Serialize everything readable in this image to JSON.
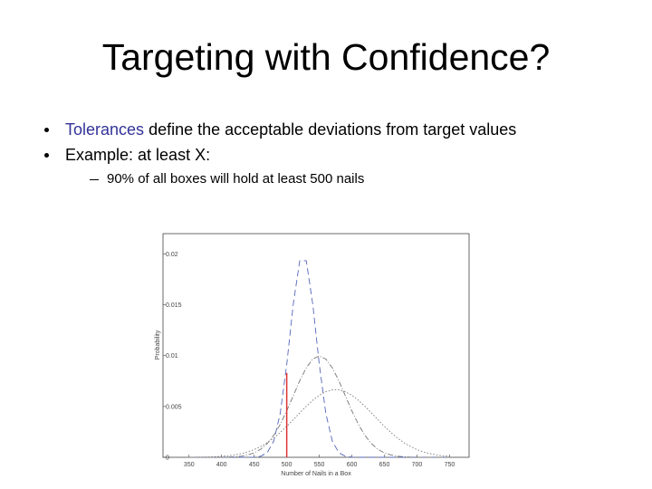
{
  "header": {
    "title": "Targeting with Confidence?"
  },
  "bullets": [
    {
      "highlight": "Tolerances",
      "text": "define the acceptable deviations from target values"
    },
    {
      "text": "Example: at least X:"
    }
  ],
  "sub_bullets": [
    "90% of all boxes will hold at least 500 nails"
  ],
  "chart_data": {
    "type": "line",
    "x_label": "Number of Nails in a Box",
    "y_label": "Probability",
    "x": [
      350,
      360,
      370,
      380,
      390,
      400,
      410,
      420,
      430,
      440,
      450,
      460,
      470,
      480,
      490,
      500,
      510,
      520,
      530,
      540,
      550,
      560,
      570,
      580,
      590,
      600,
      610,
      620,
      630,
      640,
      650,
      660,
      670,
      680,
      690,
      700,
      710,
      720,
      730,
      740,
      750
    ],
    "series": [
      {
        "color": "#5566bb",
        "dash": "7,4",
        "values": [
          0,
          0,
          0,
          0,
          0,
          0,
          0,
          0,
          0,
          0,
          2e-05,
          0.0001,
          0.00045,
          0.00159,
          0.00432,
          0.00913,
          0.01506,
          0.01933,
          0.01933,
          0.01506,
          0.00913,
          0.00432,
          0.00159,
          0.00045,
          0.0001,
          2e-05,
          0,
          0,
          0,
          0,
          0,
          0,
          0,
          0,
          0,
          0,
          0,
          0,
          0,
          0,
          0
        ]
      },
      {
        "color": "#777777",
        "dash": "6,2,1,2",
        "values": [
          0,
          0,
          0,
          0,
          0,
          1e-05,
          2e-05,
          5e-05,
          0.00011,
          0.00023,
          0.00044,
          0.00079,
          0.00135,
          0.00216,
          0.00324,
          0.00457,
          0.00605,
          0.00753,
          0.0088,
          0.00967,
          0.00997,
          0.00967,
          0.0088,
          0.00753,
          0.00605,
          0.00457,
          0.00324,
          0.00216,
          0.00135,
          0.00079,
          0.00044,
          0.00023,
          0.00011,
          5e-05,
          2e-05,
          1e-05,
          0,
          0,
          0,
          0,
          0
        ]
      },
      {
        "color": "#777777",
        "dash": "1.5,2",
        "values": [
          1e-05,
          1e-05,
          2e-05,
          3e-05,
          6e-05,
          9e-05,
          0.00015,
          0.00024,
          0.00036,
          0.00053,
          0.00076,
          0.00106,
          0.00144,
          0.0019,
          0.00244,
          0.00304,
          0.0037,
          0.00437,
          0.00502,
          0.00561,
          0.0061,
          0.00645,
          0.00663,
          0.00663,
          0.00645,
          0.0061,
          0.00561,
          0.00502,
          0.00437,
          0.0037,
          0.00304,
          0.00244,
          0.0019,
          0.00144,
          0.00106,
          0.00076,
          0.00053,
          0.00036,
          0.00024,
          0.00015,
          9e-05
        ]
      }
    ],
    "marker": {
      "x": 500,
      "y": 0.0083,
      "color": "#dd3333"
    },
    "xlim": [
      310,
      780
    ],
    "ylim": [
      0,
      0.022
    ],
    "xticks": [
      350,
      400,
      450,
      500,
      550,
      600,
      650,
      700,
      750
    ],
    "yticks": [
      0,
      0.005,
      0.01,
      0.015,
      0.02
    ]
  }
}
